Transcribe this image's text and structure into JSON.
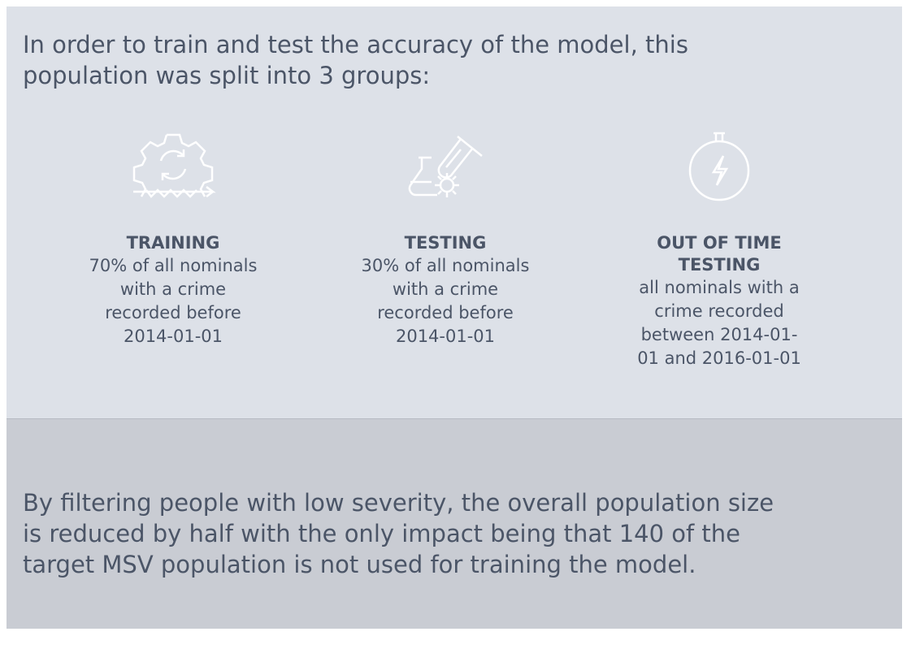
{
  "intro": {
    "lines": [
      "In order to train and test the accuracy of the model, this",
      "population was split into 3 groups:"
    ]
  },
  "groups": [
    {
      "title": [
        "TRAINING"
      ],
      "description": [
        "70% of all nominals",
        "with a crime",
        "recorded before",
        "2014-01-01"
      ]
    },
    {
      "title": [
        "TESTING"
      ],
      "description": [
        "30% of all nominals",
        "with a crime",
        "recorded before",
        "2014-01-01"
      ]
    },
    {
      "title": [
        "OUT OF TIME",
        "TESTING"
      ],
      "description": [
        "all nominals with a",
        "crime recorded",
        "between 2014-01-",
        "01 and 2016-01-01"
      ]
    }
  ],
  "footer": {
    "lines": [
      "By filtering people with low severity, the overall population size",
      "is reduced by half with the only impact being that 140 of the",
      "target MSV population is not used for training the model."
    ]
  }
}
